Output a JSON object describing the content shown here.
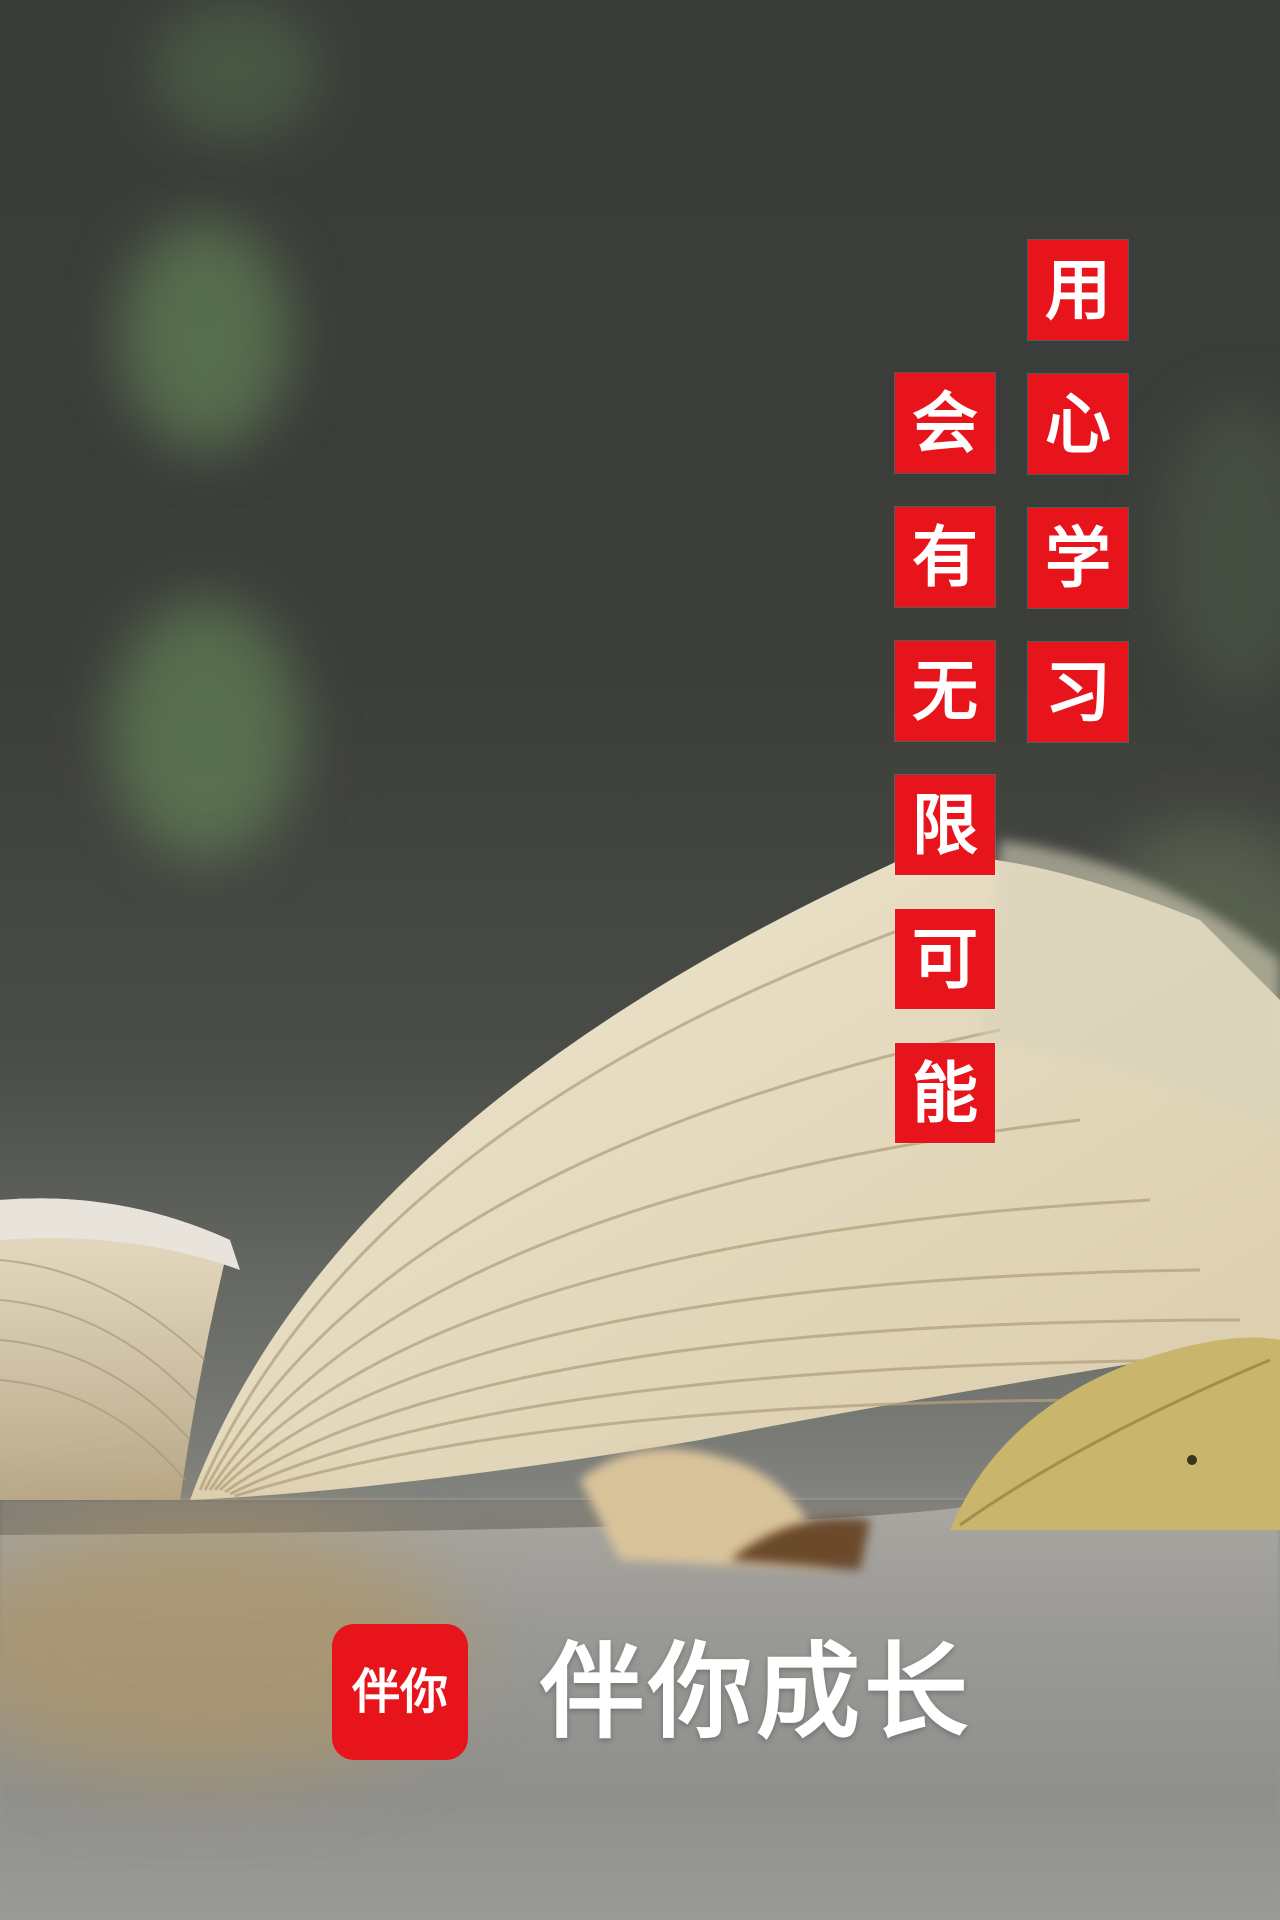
{
  "slogan": {
    "line1": [
      "用",
      "心",
      "学",
      "习"
    ],
    "line2": [
      "会",
      "有",
      "无",
      "限",
      "可",
      "能"
    ]
  },
  "brand": {
    "logo_text": "伴你",
    "tagline": "伴你成长"
  },
  "colors": {
    "accent": "#e8141c",
    "text_on_accent": "#ffffff"
  },
  "icons": {
    "logo": "brand-logo-icon"
  }
}
